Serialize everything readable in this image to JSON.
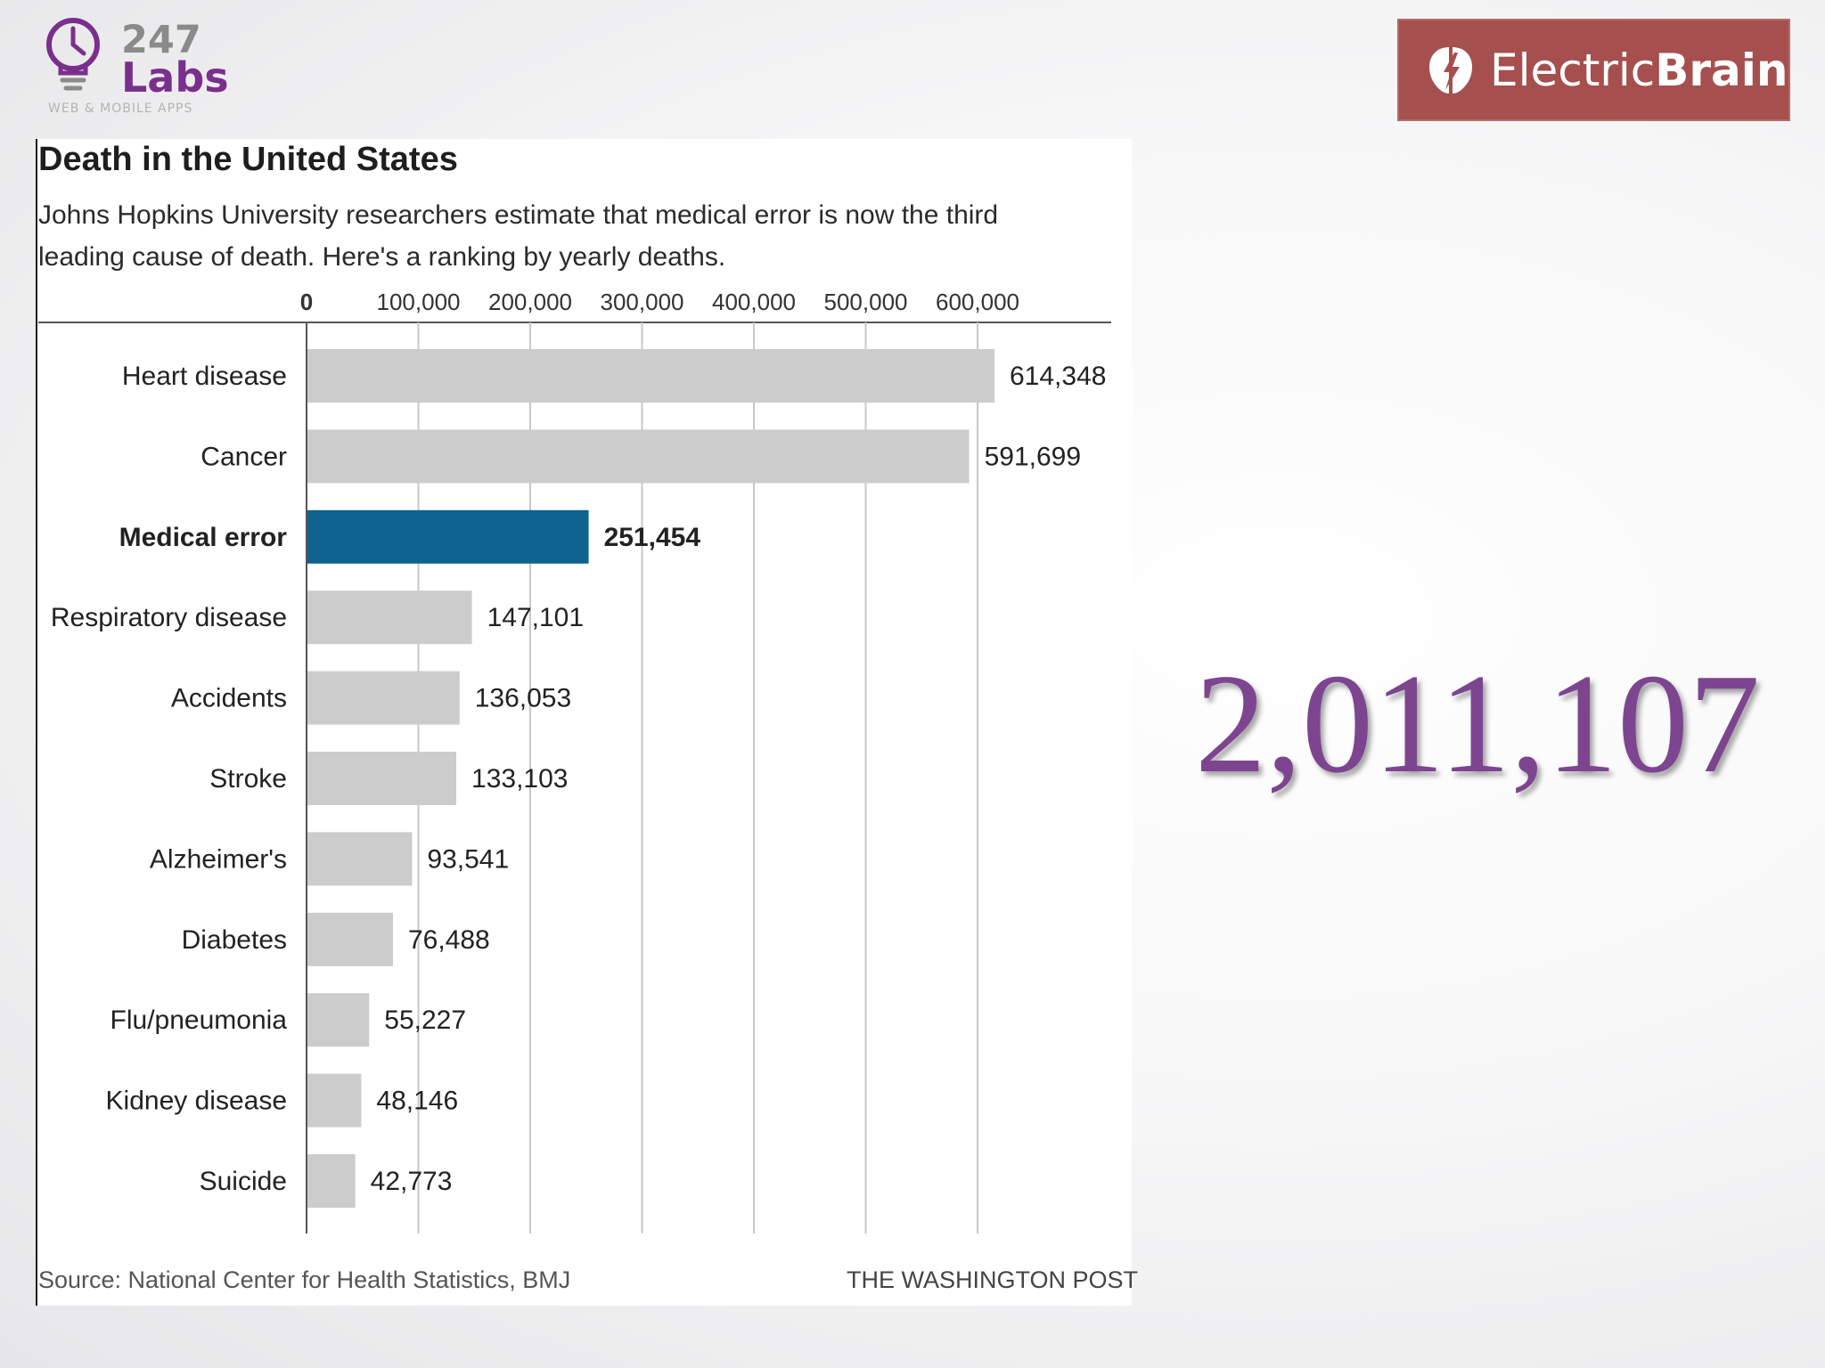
{
  "branding": {
    "labs_number": "247",
    "labs_word": "Labs",
    "labs_tagline": "WEB & MOBILE APPS",
    "eb_part1": "Electric",
    "eb_part2": "Brain",
    "brand_purple": "#7b2f8c",
    "brand_red": "#a64f4f"
  },
  "slide": {
    "total": "2,011,107",
    "total_color": "#7d4590"
  },
  "chart_data": {
    "type": "bar",
    "orientation": "horizontal",
    "title": "Death in the United States",
    "subtitle_lines": [
      "Johns Hopkins University researchers estimate that medical error is now the third",
      "leading cause of death. Here's a ranking by yearly deaths."
    ],
    "categories": [
      "Heart disease",
      "Cancer",
      "Medical error",
      "Respiratory disease",
      "Accidents",
      "Stroke",
      "Alzheimer's",
      "Diabetes",
      "Flu/pneumonia",
      "Kidney disease",
      "Suicide"
    ],
    "values": [
      614348,
      591699,
      251454,
      147101,
      136053,
      133103,
      93541,
      76488,
      55227,
      48146,
      42773
    ],
    "value_labels": [
      "614,348",
      "591,699",
      "251,454",
      "147,101",
      "136,053",
      "133,103",
      "93,541",
      "76,488",
      "55,227",
      "48,146",
      "42,773"
    ],
    "highlight": "Medical error",
    "xlim": [
      0,
      600000
    ],
    "xticks": [
      0,
      100000,
      200000,
      300000,
      400000,
      500000,
      600000
    ],
    "xtick_labels": [
      "0",
      "100,000",
      "200,000",
      "300,000",
      "400,000",
      "500,000",
      "600,000"
    ],
    "grid": true,
    "axis_position": "top",
    "bar_color": "#cccccc",
    "highlight_color": "#0e6390",
    "source": "Source: National Center for Health Statistics, BMJ",
    "credit": "THE WASHINGTON POST"
  }
}
